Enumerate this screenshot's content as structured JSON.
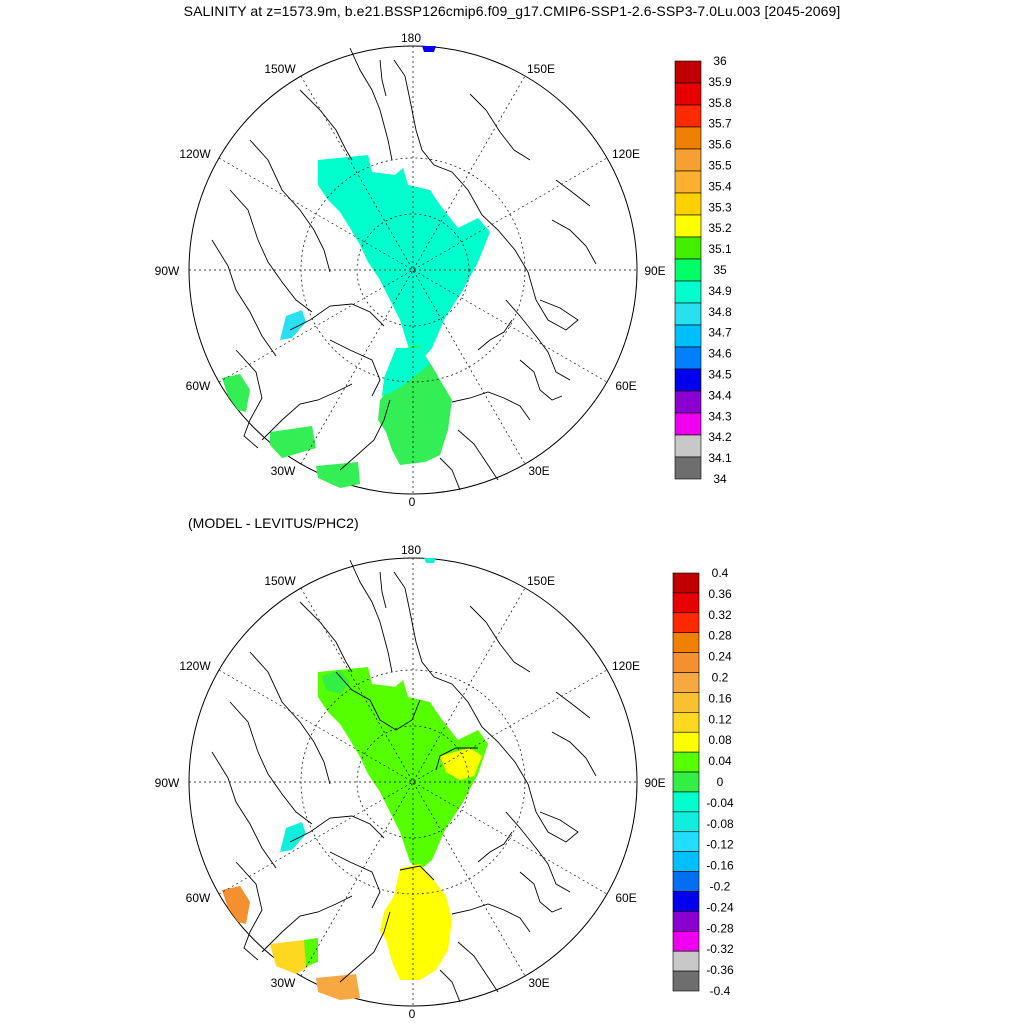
{
  "figure": {
    "title": "SALINITY at z=1573.9m, b.e21.BSSP126cmip6.f09_g17.CMIP6-SSP1-2.6-SSP3-7.0Lu.003 [2045-2069]",
    "subtitle": "(MODEL - LEVITUS/PHC2)"
  },
  "maps": [
    {
      "id": "salinity",
      "projection": "north-polar-stereographic",
      "longitude_labels": [
        "180",
        "150E",
        "120E",
        "90E",
        "60E",
        "30E",
        "0",
        "30W",
        "60W",
        "90W",
        "120W",
        "150W"
      ],
      "colorbar": {
        "labels": [
          "36",
          "35.9",
          "35.8",
          "35.7",
          "35.6",
          "35.5",
          "35.4",
          "35.3",
          "35.2",
          "35.1",
          "35",
          "34.9",
          "34.8",
          "34.7",
          "34.6",
          "34.5",
          "34.4",
          "34.3",
          "34.2",
          "34.1",
          "34"
        ],
        "colors": [
          "#c00000",
          "#e80000",
          "#ff2a00",
          "#f08000",
          "#f5a030",
          "#fbb030",
          "#fed000",
          "#ffff00",
          "#44ee00",
          "#00ff66",
          "#00ffcc",
          "#28e0f0",
          "#00bfff",
          "#0080ff",
          "#0000ee",
          "#8a00d0",
          "#ee00ee",
          "#c8c8c8",
          "#6e6e6e"
        ]
      }
    },
    {
      "id": "difference",
      "projection": "north-polar-stereographic",
      "longitude_labels": [
        "180",
        "150E",
        "120E",
        "90E",
        "60E",
        "30E",
        "0",
        "30W",
        "60W",
        "90W",
        "120W",
        "150W"
      ],
      "colorbar": {
        "labels": [
          "0.4",
          "0.36",
          "0.32",
          "0.28",
          "0.24",
          "0.2",
          "0.16",
          "0.12",
          "0.08",
          "0.04",
          "0",
          "-0.04",
          "-0.08",
          "-0.12",
          "-0.16",
          "-0.2",
          "-0.24",
          "-0.28",
          "-0.32",
          "-0.36",
          "-0.4"
        ],
        "colors": [
          "#c00000",
          "#e80000",
          "#ff2a00",
          "#f08000",
          "#f59030",
          "#f8a840",
          "#fbc030",
          "#fed820",
          "#ffff00",
          "#55ff00",
          "#33ee44",
          "#00ffcc",
          "#11eedd",
          "#22ddff",
          "#00bfff",
          "#0070f0",
          "#0000ee",
          "#8a00d0",
          "#ee00ee",
          "#c8c8c8",
          "#6e6e6e"
        ]
      }
    }
  ]
}
